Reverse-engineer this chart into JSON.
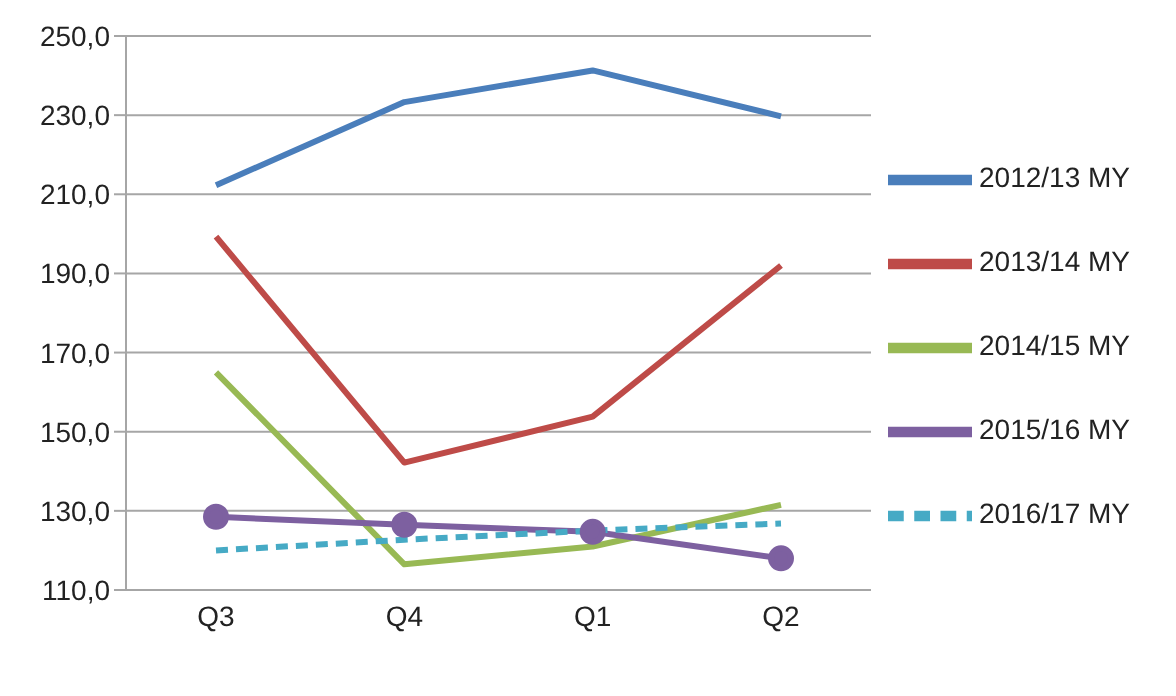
{
  "chart_data": {
    "type": "line",
    "categories": [
      "Q3",
      "Q4",
      "Q1",
      "Q2"
    ],
    "series": [
      {
        "name": "2012/13 MY",
        "color": "#4a7ebb",
        "values": [
          212.3,
          233.3,
          241.3,
          229.7
        ]
      },
      {
        "name": "2013/14 MY",
        "color": "#be4b48",
        "values": [
          199.3,
          142.2,
          153.8,
          192.0
        ]
      },
      {
        "name": "2014/15 MY",
        "color": "#98b954",
        "values": [
          165.0,
          116.5,
          121.0,
          131.5
        ]
      },
      {
        "name": "2015/16 MY",
        "color": "#7d60a0",
        "values": [
          128.5,
          126.5,
          124.7,
          118.0
        ],
        "marker": "circle"
      },
      {
        "name": "2016/17 MY",
        "color": "#46aac5",
        "values": [
          120.0,
          122.7,
          125.0,
          126.8
        ],
        "line_style": "dashed"
      }
    ],
    "ylim": [
      110,
      250
    ],
    "yticks": [
      {
        "value": 110,
        "label": "110,0"
      },
      {
        "value": 130,
        "label": "130,0"
      },
      {
        "value": 150,
        "label": "150,0"
      },
      {
        "value": 170,
        "label": "170,0"
      },
      {
        "value": 190,
        "label": "190,0"
      },
      {
        "value": 210,
        "label": "210,0"
      },
      {
        "value": 230,
        "label": "230,0"
      },
      {
        "value": 250,
        "label": "250,0"
      }
    ],
    "grid": "y",
    "legend": "right",
    "marker": "none",
    "line_style": "solid"
  }
}
